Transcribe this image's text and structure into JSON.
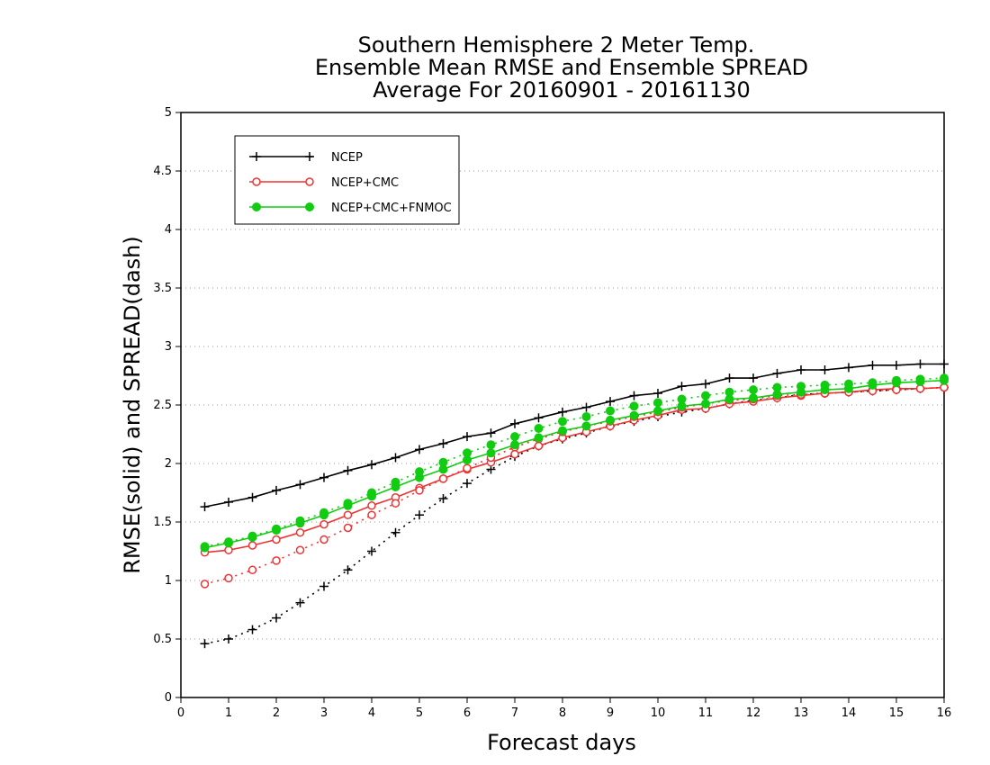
{
  "chart_data": {
    "type": "line",
    "title": [
      "Southern Hemisphere 2 Meter Temp.",
      "Ensemble Mean RMSE and Ensemble SPREAD",
      "Average For 20160901 - 20161130"
    ],
    "xlabel": "Forecast days",
    "ylabel": "RMSE(solid) and SPREAD(dash)",
    "xlim": [
      0,
      16
    ],
    "ylim": [
      0,
      5
    ],
    "xticks": [
      "0",
      "1",
      "2",
      "3",
      "4",
      "5",
      "6",
      "7",
      "8",
      "9",
      "10",
      "11",
      "12",
      "13",
      "14",
      "15",
      "16"
    ],
    "yticks": [
      "0",
      "0.5",
      "1",
      "1.5",
      "2",
      "2.5",
      "3",
      "3.5",
      "4",
      "4.5",
      "5"
    ],
    "grid": "horizontal-dotted",
    "legend_position": "top-left",
    "x": [
      0.5,
      1,
      1.5,
      2,
      2.5,
      3,
      3.5,
      4,
      4.5,
      5,
      5.5,
      6,
      6.5,
      7,
      7.5,
      8,
      8.5,
      9,
      9.5,
      10,
      10.5,
      11,
      11.5,
      12,
      12.5,
      13,
      13.5,
      14,
      14.5,
      15,
      15.5,
      16
    ],
    "series": [
      {
        "name": "NCEP",
        "color": "#000000",
        "marker": "plus",
        "rmse": [
          1.63,
          1.67,
          1.71,
          1.77,
          1.82,
          1.88,
          1.94,
          1.99,
          2.05,
          2.12,
          2.17,
          2.23,
          2.26,
          2.34,
          2.39,
          2.44,
          2.48,
          2.53,
          2.58,
          2.6,
          2.66,
          2.68,
          2.73,
          2.73,
          2.77,
          2.8,
          2.8,
          2.82,
          2.84,
          2.84,
          2.85,
          2.85
        ],
        "spread": [
          0.46,
          0.5,
          0.58,
          0.68,
          0.81,
          0.95,
          1.09,
          1.25,
          1.41,
          1.56,
          1.7,
          1.83,
          1.95,
          2.06,
          2.15,
          2.21,
          2.26,
          2.32,
          2.36,
          2.4,
          2.44,
          2.47,
          2.51,
          2.54,
          2.56,
          2.59,
          2.6,
          2.61,
          2.62,
          2.63,
          2.64,
          2.65
        ]
      },
      {
        "name": "NCEP+CMC",
        "color": "#ee3333",
        "marker": "open-circle",
        "rmse": [
          1.24,
          1.26,
          1.3,
          1.35,
          1.41,
          1.48,
          1.56,
          1.64,
          1.71,
          1.79,
          1.87,
          1.95,
          2.01,
          2.08,
          2.15,
          2.22,
          2.27,
          2.32,
          2.37,
          2.41,
          2.46,
          2.47,
          2.51,
          2.53,
          2.56,
          2.58,
          2.6,
          2.61,
          2.63,
          2.64,
          2.64,
          2.65
        ],
        "spread": [
          0.97,
          1.02,
          1.09,
          1.17,
          1.26,
          1.35,
          1.45,
          1.56,
          1.66,
          1.77,
          1.87,
          1.96,
          2.05,
          2.14,
          2.21,
          2.27,
          2.32,
          2.36,
          2.4,
          2.44,
          2.48,
          2.51,
          2.54,
          2.55,
          2.58,
          2.59,
          2.6,
          2.61,
          2.62,
          2.63,
          2.64,
          2.65
        ]
      },
      {
        "name": "NCEP+CMC+FNMOC",
        "color": "#11cc11",
        "marker": "filled-circle",
        "rmse": [
          1.28,
          1.32,
          1.37,
          1.43,
          1.49,
          1.56,
          1.64,
          1.72,
          1.8,
          1.88,
          1.95,
          2.03,
          2.09,
          2.16,
          2.22,
          2.28,
          2.32,
          2.37,
          2.41,
          2.45,
          2.49,
          2.51,
          2.55,
          2.56,
          2.59,
          2.61,
          2.63,
          2.64,
          2.67,
          2.69,
          2.7,
          2.71
        ],
        "spread": [
          1.29,
          1.33,
          1.38,
          1.44,
          1.51,
          1.58,
          1.66,
          1.75,
          1.84,
          1.93,
          2.01,
          2.09,
          2.16,
          2.23,
          2.3,
          2.36,
          2.4,
          2.45,
          2.49,
          2.52,
          2.55,
          2.58,
          2.61,
          2.63,
          2.65,
          2.66,
          2.67,
          2.68,
          2.69,
          2.71,
          2.72,
          2.73
        ]
      }
    ]
  }
}
